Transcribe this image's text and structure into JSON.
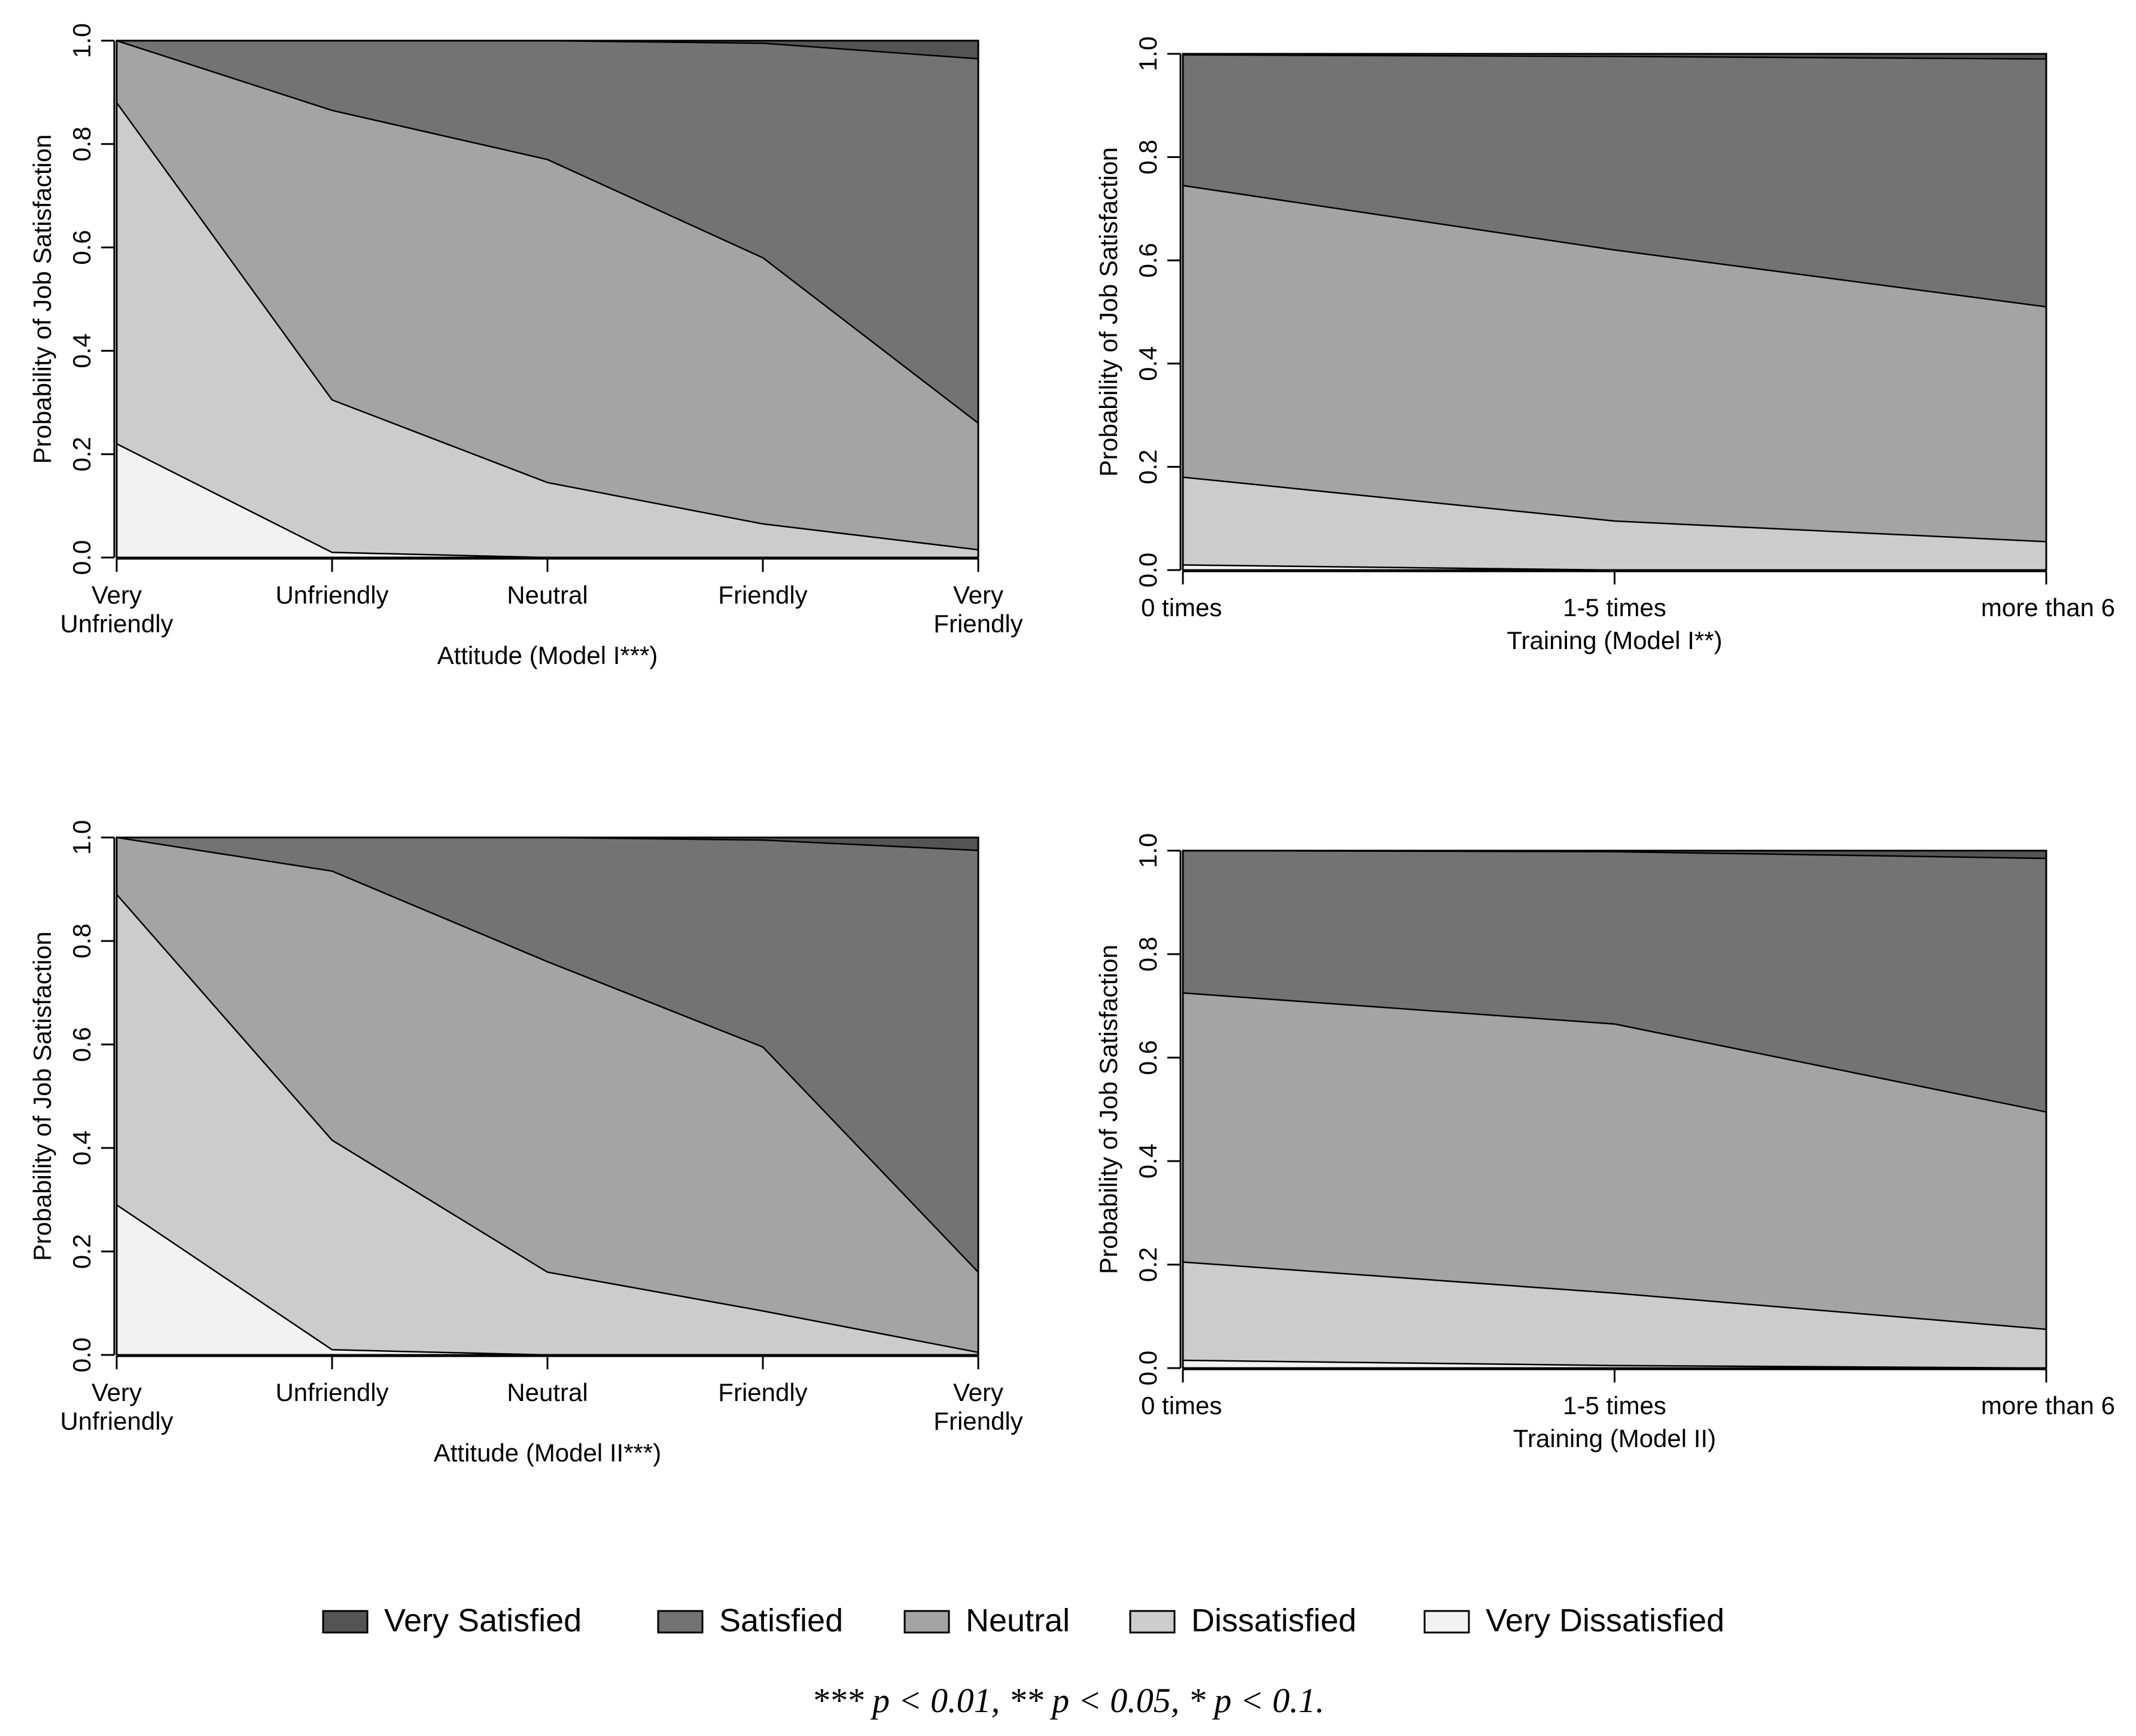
{
  "chart_data": [
    {
      "type": "area",
      "stacked": true,
      "xlabel": "Attitude (Model I***)",
      "ylabel": "Probability of Job Satisfaction",
      "ylim": [
        0,
        1
      ],
      "yticks": [
        "0.0",
        "0.2",
        "0.4",
        "0.6",
        "0.8",
        "1.0"
      ],
      "categories": [
        "Very Unfriendly",
        "Unfriendly",
        "Neutral",
        "Friendly",
        "Very Friendly"
      ],
      "category_lines": [
        [
          "Very",
          "Unfriendly"
        ],
        [
          "Unfriendly"
        ],
        [
          "Neutral"
        ],
        [
          "Friendly"
        ],
        [
          "Very",
          "Friendly"
        ]
      ],
      "cumulative": [
        [
          0.22,
          0.01,
          0.0,
          0.0,
          0.0
        ],
        [
          0.88,
          0.305,
          0.145,
          0.065,
          0.015
        ],
        [
          1.0,
          0.865,
          0.77,
          0.58,
          0.26
        ],
        [
          1.0,
          1.0,
          1.0,
          0.995,
          0.965
        ]
      ]
    },
    {
      "type": "area",
      "stacked": true,
      "xlabel": "Training (Model I**)",
      "ylabel": "Probability of Job Satisfaction",
      "ylim": [
        0,
        1
      ],
      "yticks": [
        "0.0",
        "0.2",
        "0.4",
        "0.6",
        "0.8",
        "1.0"
      ],
      "categories": [
        "0 times",
        "1-5 times",
        "more than 6"
      ],
      "category_lines": [
        [
          "0 times"
        ],
        [
          "1-5 times"
        ],
        [
          "more than 6"
        ]
      ],
      "cumulative": [
        [
          0.01,
          0.0,
          0.0
        ],
        [
          0.18,
          0.095,
          0.055
        ],
        [
          0.745,
          0.62,
          0.51
        ],
        [
          0.998,
          0.995,
          0.99
        ]
      ]
    },
    {
      "type": "area",
      "stacked": true,
      "xlabel": "Attitude (Model II***)",
      "ylabel": "Probability of Job Satisfaction",
      "ylim": [
        0,
        1
      ],
      "yticks": [
        "0.0",
        "0.2",
        "0.4",
        "0.6",
        "0.8",
        "1.0"
      ],
      "categories": [
        "Very Unfriendly",
        "Unfriendly",
        "Neutral",
        "Friendly",
        "Very Friendly"
      ],
      "category_lines": [
        [
          "Very",
          "Unfriendly"
        ],
        [
          "Unfriendly"
        ],
        [
          "Neutral"
        ],
        [
          "Friendly"
        ],
        [
          "Very",
          "Friendly"
        ]
      ],
      "cumulative": [
        [
          0.29,
          0.01,
          0.0,
          0.0,
          0.0
        ],
        [
          0.89,
          0.415,
          0.16,
          0.085,
          0.005
        ],
        [
          1.0,
          0.935,
          0.76,
          0.595,
          0.16
        ],
        [
          1.0,
          1.0,
          1.0,
          0.995,
          0.975
        ]
      ]
    },
    {
      "type": "area",
      "stacked": true,
      "xlabel": "Training (Model II)",
      "ylabel": "Probability of Job Satisfaction",
      "ylim": [
        0,
        1
      ],
      "yticks": [
        "0.0",
        "0.2",
        "0.4",
        "0.6",
        "0.8",
        "1.0"
      ],
      "categories": [
        "0 times",
        "1-5 times",
        "more than 6"
      ],
      "category_lines": [
        [
          "0 times"
        ],
        [
          "1-5 times"
        ],
        [
          "more than 6"
        ]
      ],
      "cumulative": [
        [
          0.015,
          0.005,
          0.0
        ],
        [
          0.205,
          0.145,
          0.075
        ],
        [
          0.725,
          0.665,
          0.495
        ],
        [
          1.0,
          0.998,
          0.985
        ]
      ]
    }
  ],
  "legend": {
    "placement": "bottom",
    "items": [
      {
        "name": "Very Satisfied",
        "color": "#545454"
      },
      {
        "name": "Satisfied",
        "color": "#737373"
      },
      {
        "name": "Neutral",
        "color": "#a4a4a4"
      },
      {
        "name": "Dissatisfied",
        "color": "#cccccc"
      },
      {
        "name": "Very Dissatisfied",
        "color": "#f2f2f2"
      }
    ]
  },
  "band_colors": [
    "#f2f2f2",
    "#cccccc",
    "#a4a4a4",
    "#737373",
    "#545454"
  ],
  "footnote": "*** p < 0.01, ** p < 0.05, * p < 0.1."
}
